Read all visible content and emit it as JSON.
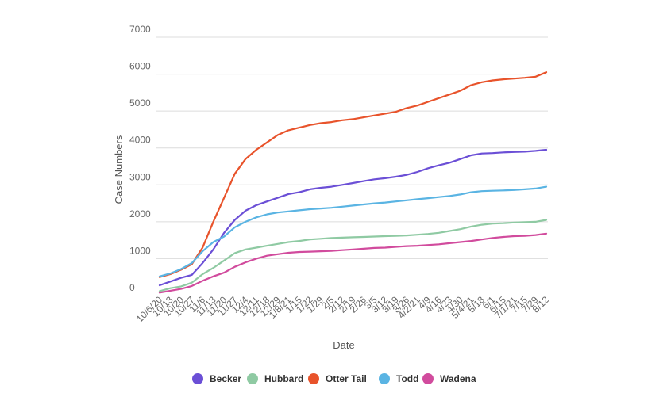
{
  "chart_data": {
    "type": "line",
    "xlabel": "Date",
    "ylabel": "Case Numbers",
    "ylim": [
      0,
      7000
    ],
    "yticks": [
      0,
      1000,
      2000,
      3000,
      4000,
      5000,
      6000,
      7000
    ],
    "grid": true,
    "legend_position": "bottom",
    "x": [
      "10/6/20",
      "10/13",
      "10/20",
      "10/27",
      "11/6",
      "11/13",
      "11/20",
      "11/27",
      "12/4",
      "12/11",
      "12/18",
      "12/29",
      "1/8/21",
      "1/15",
      "1/22",
      "1/29",
      "2/5",
      "2/12",
      "2/19",
      "2/26",
      "3/5",
      "3/12",
      "3/19",
      "3/26",
      "4/2/21",
      "4/9",
      "4/16",
      "4/23",
      "4/30",
      "5/4/21",
      "5/18",
      "6/1",
      "6/15",
      "7/1/21",
      "7/15",
      "7/29",
      "8/12"
    ],
    "series": [
      {
        "name": "Becker",
        "color": "#6b4fd6",
        "values": [
          280,
          380,
          480,
          560,
          880,
          1250,
          1700,
          2050,
          2300,
          2450,
          2550,
          2650,
          2750,
          2800,
          2880,
          2920,
          2950,
          3000,
          3050,
          3100,
          3150,
          3180,
          3220,
          3270,
          3350,
          3450,
          3530,
          3600,
          3700,
          3800,
          3850,
          3860,
          3880,
          3890,
          3900,
          3920,
          3950
        ]
      },
      {
        "name": "Hubbard",
        "color": "#8fcaa3",
        "values": [
          120,
          200,
          250,
          350,
          580,
          750,
          950,
          1150,
          1250,
          1300,
          1350,
          1400,
          1450,
          1480,
          1520,
          1540,
          1560,
          1570,
          1580,
          1590,
          1600,
          1610,
          1620,
          1630,
          1650,
          1670,
          1700,
          1750,
          1800,
          1870,
          1920,
          1950,
          1960,
          1980,
          1990,
          2000,
          2050
        ]
      },
      {
        "name": "Otter Tail",
        "color": "#e8532b",
        "values": [
          500,
          580,
          700,
          850,
          1300,
          2000,
          2650,
          3300,
          3700,
          3950,
          4150,
          4350,
          4480,
          4550,
          4620,
          4670,
          4700,
          4750,
          4780,
          4830,
          4880,
          4930,
          4980,
          5080,
          5150,
          5250,
          5350,
          5450,
          5550,
          5700,
          5780,
          5830,
          5860,
          5880,
          5900,
          5930,
          6050
        ]
      },
      {
        "name": "Todd",
        "color": "#5ab4e3",
        "values": [
          520,
          600,
          720,
          880,
          1200,
          1450,
          1600,
          1850,
          2000,
          2120,
          2200,
          2250,
          2280,
          2310,
          2340,
          2360,
          2380,
          2410,
          2440,
          2470,
          2500,
          2520,
          2550,
          2580,
          2610,
          2640,
          2670,
          2700,
          2740,
          2800,
          2830,
          2840,
          2850,
          2860,
          2880,
          2900,
          2950
        ]
      },
      {
        "name": "Wadena",
        "color": "#d14b9d",
        "values": [
          80,
          130,
          180,
          260,
          400,
          520,
          620,
          780,
          900,
          1000,
          1080,
          1120,
          1160,
          1180,
          1190,
          1200,
          1210,
          1230,
          1250,
          1270,
          1290,
          1300,
          1320,
          1340,
          1350,
          1370,
          1390,
          1420,
          1450,
          1480,
          1520,
          1560,
          1590,
          1610,
          1620,
          1640,
          1680
        ]
      }
    ]
  }
}
